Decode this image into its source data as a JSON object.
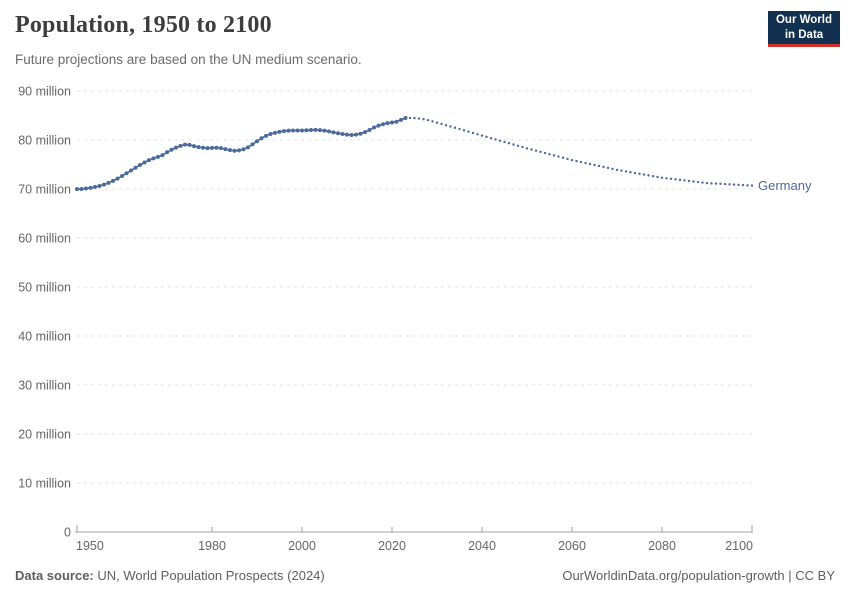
{
  "header": {
    "title": "Population, 1950 to 2100",
    "subtitle": "Future projections are based on the UN medium scenario."
  },
  "logo": {
    "line1": "Our World",
    "line2": "in Data",
    "bg_color": "#12304f",
    "accent_color": "#cf3129"
  },
  "chart_data": {
    "type": "line",
    "title": "Population, 1950 to 2100",
    "entity_label": "Germany",
    "unit": "million",
    "xlim": [
      1950,
      2100
    ],
    "ylim": [
      0,
      90
    ],
    "x_ticks": [
      1950,
      1980,
      2000,
      2020,
      2040,
      2060,
      2080,
      2100
    ],
    "y_ticks": [
      0,
      10,
      20,
      30,
      40,
      50,
      60,
      70,
      80,
      90
    ],
    "y_tick_suffix": " million",
    "grid": true,
    "legend_position": "end-of-line-label",
    "colors": {
      "line": "#4C6A9C",
      "grid": "#e2e2e2",
      "axis": "#a1a1a1",
      "tick_text": "#666666"
    },
    "series": [
      {
        "name": "Germany — historical estimates",
        "style": "solid_with_markers",
        "start_year": 1950,
        "years_span": [
          1950,
          2023
        ],
        "values": [
          69.97,
          70.01,
          70.11,
          70.24,
          70.41,
          70.62,
          70.9,
          71.25,
          71.66,
          72.12,
          72.66,
          73.21,
          73.78,
          74.34,
          74.89,
          75.41,
          75.89,
          76.26,
          76.56,
          76.91,
          77.5,
          78.0,
          78.45,
          78.8,
          79.05,
          79.0,
          78.75,
          78.55,
          78.42,
          78.35,
          78.4,
          78.42,
          78.33,
          78.13,
          77.93,
          77.8,
          77.87,
          78.1,
          78.5,
          79.1,
          79.75,
          80.35,
          80.85,
          81.22,
          81.46,
          81.66,
          81.82,
          81.91,
          81.93,
          81.93,
          81.94,
          81.98,
          82.03,
          82.06,
          82.02,
          81.91,
          81.75,
          81.56,
          81.38,
          81.22,
          81.09,
          81.03,
          81.09,
          81.28,
          81.61,
          82.05,
          82.55,
          82.94,
          83.22,
          83.44,
          83.58,
          83.73,
          84.1,
          84.48
        ]
      },
      {
        "name": "Germany — UN medium scenario projection",
        "style": "dotted",
        "start_year": 2024,
        "years_span": [
          2024,
          2100
        ],
        "values": [
          84.5,
          84.47,
          84.38,
          84.24,
          84.05,
          83.8,
          83.52,
          83.28,
          83.02,
          82.76,
          82.5,
          82.24,
          81.97,
          81.7,
          81.44,
          81.17,
          80.9,
          80.64,
          80.38,
          80.12,
          79.86,
          79.6,
          79.34,
          79.08,
          78.82,
          78.56,
          78.3,
          78.06,
          77.82,
          77.58,
          77.34,
          77.1,
          76.86,
          76.62,
          76.38,
          76.14,
          75.9,
          75.7,
          75.5,
          75.3,
          75.1,
          74.9,
          74.7,
          74.5,
          74.3,
          74.1,
          73.9,
          73.74,
          73.58,
          73.42,
          73.26,
          73.1,
          72.94,
          72.78,
          72.62,
          72.46,
          72.3,
          72.19,
          72.08,
          71.97,
          71.86,
          71.75,
          71.64,
          71.53,
          71.42,
          71.31,
          71.2,
          71.15,
          71.1,
          71.05,
          71.0,
          70.95,
          70.9,
          70.85,
          70.8,
          70.75,
          70.7
        ]
      }
    ]
  },
  "footer": {
    "source_label": "Data source:",
    "source_text": " UN, World Population Prospects (2024)",
    "link_text": "OurWorldinData.org/population-growth",
    "license_text": " | CC BY"
  }
}
